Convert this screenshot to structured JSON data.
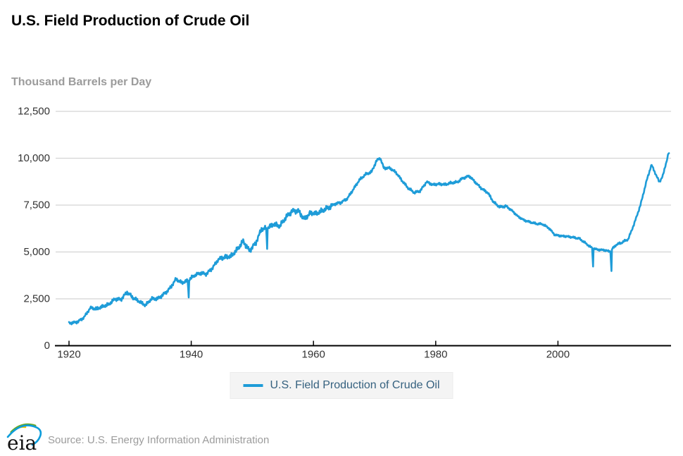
{
  "header": {
    "title": "U.S. Field Production of Crude Oil",
    "y_axis_title": "Thousand Barrels per Day"
  },
  "legend": {
    "label": "U.S. Field Production of Crude Oil",
    "swatch_color": "#1e9cd8"
  },
  "footer": {
    "logo_text": "eia",
    "source": "Source: U.S. Energy Information Administration"
  },
  "colors": {
    "line": "#1e9cd8",
    "grid": "#d4d4d4",
    "axis": "#000000",
    "tick_label": "#333333",
    "subtitle_gray": "#9b9b9b",
    "legend_text": "#35617f",
    "legend_bg": "#f4f4f4",
    "logo_yellow": "#f2c500",
    "logo_green": "#67a829",
    "logo_blue": "#0d9ddb"
  },
  "chart_data": {
    "type": "line",
    "title": "U.S. Field Production of Crude Oil",
    "ylabel": "Thousand Barrels per Day",
    "unit": "thousand barrels per day",
    "resolution": "monthly",
    "x_range": [
      1920,
      2018.2
    ],
    "ylim": [
      0,
      12500
    ],
    "grid": "horizontal",
    "legend_position": "bottom-center",
    "yticks": [
      {
        "v": 0,
        "label": "0"
      },
      {
        "v": 2500,
        "label": "2,500"
      },
      {
        "v": 5000,
        "label": "5,000"
      },
      {
        "v": 7500,
        "label": "7,500"
      },
      {
        "v": 10000,
        "label": "10,000"
      },
      {
        "v": 12500,
        "label": "12,500"
      }
    ],
    "xticks": [
      {
        "v": 1920,
        "label": "1920"
      },
      {
        "v": 1940,
        "label": "1940"
      },
      {
        "v": 1960,
        "label": "1960"
      },
      {
        "v": 1980,
        "label": "1980"
      },
      {
        "v": 2000,
        "label": "2000"
      }
    ],
    "series": [
      {
        "name": "U.S. Field Production of Crude Oil",
        "color": "#1e9cd8",
        "anchor_points": [
          [
            1920.5,
            1210
          ],
          [
            1921.5,
            1290
          ],
          [
            1922.5,
            1530
          ],
          [
            1923.5,
            2020
          ],
          [
            1924.5,
            1960
          ],
          [
            1925.5,
            2100
          ],
          [
            1926.5,
            2200
          ],
          [
            1927.5,
            2490
          ],
          [
            1928.5,
            2470
          ],
          [
            1929.5,
            2860
          ],
          [
            1930.5,
            2550
          ],
          [
            1931.5,
            2360
          ],
          [
            1932.5,
            2160
          ],
          [
            1933.5,
            2500
          ],
          [
            1934.5,
            2500
          ],
          [
            1935.5,
            2750
          ],
          [
            1936.5,
            3050
          ],
          [
            1937.5,
            3550
          ],
          [
            1938.5,
            3350
          ],
          [
            1939.5,
            3500
          ],
          [
            1940.5,
            3740
          ],
          [
            1941.5,
            3870
          ],
          [
            1942.5,
            3830
          ],
          [
            1943.5,
            4160
          ],
          [
            1944.5,
            4620
          ],
          [
            1945.5,
            4720
          ],
          [
            1946.5,
            4780
          ],
          [
            1947.5,
            5120
          ],
          [
            1948.5,
            5570
          ],
          [
            1949.5,
            5080
          ],
          [
            1950.5,
            5440
          ],
          [
            1951.5,
            6210
          ],
          [
            1952.5,
            6290
          ],
          [
            1953.5,
            6490
          ],
          [
            1954.5,
            6370
          ],
          [
            1955.5,
            6850
          ],
          [
            1956.5,
            7190
          ],
          [
            1957.5,
            7200
          ],
          [
            1958.5,
            6740
          ],
          [
            1959.5,
            7080
          ],
          [
            1960.5,
            7060
          ],
          [
            1961.5,
            7210
          ],
          [
            1962.5,
            7360
          ],
          [
            1963.5,
            7570
          ],
          [
            1964.5,
            7640
          ],
          [
            1965.5,
            7830
          ],
          [
            1966.5,
            8330
          ],
          [
            1967.5,
            8840
          ],
          [
            1968.5,
            9130
          ],
          [
            1969.5,
            9270
          ],
          [
            1970.3,
            9850
          ],
          [
            1970.9,
            10030
          ],
          [
            1971.5,
            9480
          ],
          [
            1972.5,
            9470
          ],
          [
            1973.5,
            9240
          ],
          [
            1974.5,
            8800
          ],
          [
            1975.5,
            8400
          ],
          [
            1976.5,
            8160
          ],
          [
            1977.5,
            8270
          ],
          [
            1978.5,
            8740
          ],
          [
            1979.5,
            8580
          ],
          [
            1980.5,
            8630
          ],
          [
            1981.5,
            8600
          ],
          [
            1982.5,
            8680
          ],
          [
            1983.5,
            8720
          ],
          [
            1984.5,
            8950
          ],
          [
            1985.5,
            9050
          ],
          [
            1986.5,
            8710
          ],
          [
            1987.5,
            8380
          ],
          [
            1988.5,
            8170
          ],
          [
            1989.5,
            7640
          ],
          [
            1990.5,
            7390
          ],
          [
            1991.5,
            7450
          ],
          [
            1992.5,
            7200
          ],
          [
            1993.5,
            6880
          ],
          [
            1994.5,
            6690
          ],
          [
            1995.5,
            6590
          ],
          [
            1996.5,
            6500
          ],
          [
            1997.5,
            6480
          ],
          [
            1998.5,
            6280
          ],
          [
            1999.5,
            5910
          ],
          [
            2000.5,
            5850
          ],
          [
            2001.5,
            5830
          ],
          [
            2002.5,
            5780
          ],
          [
            2003.5,
            5710
          ],
          [
            2004.5,
            5470
          ],
          [
            2005.5,
            5230
          ],
          [
            2006.5,
            5120
          ],
          [
            2007.5,
            5100
          ],
          [
            2008.5,
            5030
          ],
          [
            2009.5,
            5380
          ],
          [
            2010.5,
            5510
          ],
          [
            2011.5,
            5680
          ],
          [
            2012.5,
            6530
          ],
          [
            2013.5,
            7500
          ],
          [
            2014.5,
            8790
          ],
          [
            2015.3,
            9650
          ],
          [
            2016.6,
            8720
          ],
          [
            2017.2,
            9100
          ],
          [
            2017.92,
            10040
          ],
          [
            2018.08,
            10260
          ]
        ],
        "anomalies": [
          [
            1939.62,
            2570
          ],
          [
            1952.4,
            5160
          ],
          [
            2005.71,
            4220
          ],
          [
            2008.71,
            3980
          ]
        ]
      }
    ]
  }
}
